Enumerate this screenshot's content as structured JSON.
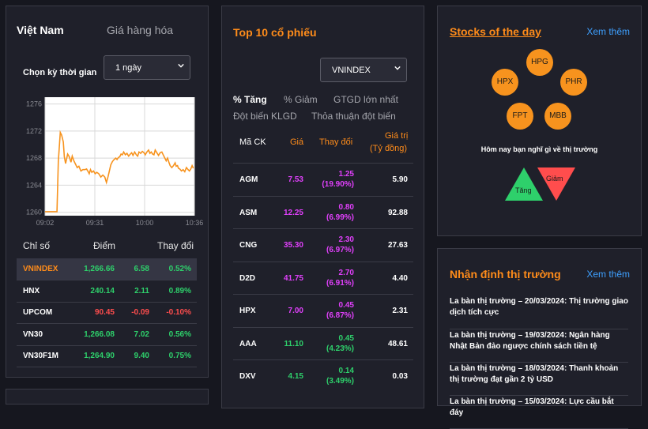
{
  "index_panel": {
    "tabs": [
      "Việt Nam",
      "Giá hàng hóa"
    ],
    "period_label": "Chọn kỳ thời gian",
    "period_value": "1 ngày",
    "chart_data": {
      "type": "line",
      "x_ticks": [
        "09:02",
        "09:31",
        "10:00",
        "10:36"
      ],
      "y_ticks": [
        1276,
        1272,
        1268,
        1264,
        1260
      ],
      "ylim": [
        1259.5,
        1277
      ],
      "x": [
        0,
        7.2,
        8,
        9.2,
        10,
        11,
        11.6,
        12.4,
        13.6,
        14.6,
        15.6,
        16.4,
        17.4,
        18.4,
        19.4,
        20.4,
        21.6,
        22.8,
        24,
        25,
        26,
        26.6,
        27.4,
        28.2,
        29.2,
        30.2,
        31.2,
        32.4,
        33.6,
        34.8,
        36,
        37,
        38,
        39.6,
        40.6,
        41.6,
        42.6,
        43.4,
        44.2,
        45,
        45.8,
        46.6,
        47.4,
        48.4,
        49.4,
        50.4,
        51.4,
        52.2,
        53,
        54,
        55,
        55.8,
        56.6,
        57.6,
        58.6,
        59.6,
        60.4,
        61.4,
        62.4,
        63.2,
        64,
        64.8,
        65.6,
        66.4,
        67.4,
        68.4,
        69.4,
        70.4,
        71.4,
        72.2,
        73,
        73.8,
        74.6,
        75.4,
        76.4,
        77.4,
        78.4,
        79,
        79.8,
        80.4,
        81.2,
        82.2,
        83.2,
        84.2,
        85.2,
        86.2,
        87,
        87.8,
        88.6,
        89.4
      ],
      "y": [
        1260.1,
        1260.1,
        1267.5,
        1271.8,
        1271.4,
        1270.4,
        1268.2,
        1267.2,
        1268.6,
        1268.2,
        1267.4,
        1268.3,
        1267.6,
        1267.1,
        1266.6,
        1266.8,
        1266.1,
        1266.3,
        1266.3,
        1266.4,
        1266.0,
        1265.7,
        1266.3,
        1265.9,
        1266.1,
        1265.7,
        1265.9,
        1265.7,
        1265.2,
        1265.5,
        1265.2,
        1264.4,
        1265.3,
        1267.0,
        1267.5,
        1267.8,
        1268.0,
        1267.8,
        1268.1,
        1268.2,
        1268.6,
        1268.5,
        1268.9,
        1268.5,
        1268.7,
        1268.3,
        1268.6,
        1268.8,
        1268.4,
        1268.9,
        1268.5,
        1268.3,
        1268.9,
        1268.7,
        1269.0,
        1268.8,
        1268.5,
        1268.9,
        1269.2,
        1268.7,
        1268.9,
        1268.6,
        1268.5,
        1269.2,
        1268.8,
        1268.4,
        1268.8,
        1268.9,
        1268.4,
        1268.0,
        1267.6,
        1268.0,
        1267.4,
        1266.9,
        1266.6,
        1266.9,
        1267.3,
        1266.8,
        1266.9,
        1266.5,
        1266.4,
        1266.1,
        1266.3,
        1266.0,
        1266.6,
        1266.3,
        1266.1,
        1266.4,
        1266.9,
        1266.5
      ]
    },
    "table": {
      "headers": [
        "Chỉ số",
        "Điểm",
        "Thay đổi"
      ],
      "rows": [
        {
          "name": "VNINDEX",
          "points": "1,266.66",
          "change": "6.58",
          "pct": "0.52%",
          "dir": "up"
        },
        {
          "name": "HNX",
          "points": "240.14",
          "change": "2.11",
          "pct": "0.89%",
          "dir": "up"
        },
        {
          "name": "UPCOM",
          "points": "90.45",
          "change": "-0.09",
          "pct": "-0.10%",
          "dir": "down"
        },
        {
          "name": "VN30",
          "points": "1,266.08",
          "change": "7.02",
          "pct": "0.56%",
          "dir": "up"
        },
        {
          "name": "VN30F1M",
          "points": "1,264.90",
          "change": "9.40",
          "pct": "0.75%",
          "dir": "up"
        }
      ]
    }
  },
  "top10": {
    "title": "Top 10 cổ phiếu",
    "exchange": "VNINDEX",
    "filters": [
      "% Tăng",
      "% Giảm",
      "GTGD lớn nhất",
      "Đột biến KLGD",
      "Thỏa thuận đột biến"
    ],
    "headers": {
      "code": "Mã CK",
      "price": "Giá",
      "change": "Thay đổi",
      "value_1": "Giá trị",
      "value_2": "(Tỷ đồng)"
    },
    "rows": [
      {
        "code": "AGM",
        "price": "7.53",
        "chg": "1.25",
        "pct": "(19.90%)",
        "value": "5.90",
        "color": "magenta"
      },
      {
        "code": "ASM",
        "price": "12.25",
        "chg": "0.80",
        "pct": "(6.99%)",
        "value": "92.88",
        "color": "magenta"
      },
      {
        "code": "CNG",
        "price": "35.30",
        "chg": "2.30",
        "pct": "(6.97%)",
        "value": "27.63",
        "color": "magenta"
      },
      {
        "code": "D2D",
        "price": "41.75",
        "chg": "2.70",
        "pct": "(6.91%)",
        "value": "4.40",
        "color": "magenta"
      },
      {
        "code": "HPX",
        "price": "7.00",
        "chg": "0.45",
        "pct": "(6.87%)",
        "value": "2.31",
        "color": "magenta"
      },
      {
        "code": "AAA",
        "price": "11.10",
        "chg": "0.45",
        "pct": "(4.23%)",
        "value": "48.61",
        "color": "green"
      },
      {
        "code": "DXV",
        "price": "4.15",
        "chg": "0.14",
        "pct": "(3.49%)",
        "value": "0.03",
        "color": "green"
      }
    ]
  },
  "stocks_of_day": {
    "title": "Stocks of the day",
    "more": "Xem thêm",
    "tickers": [
      "HPG",
      "HPX",
      "PHR",
      "FPT",
      "MBB"
    ],
    "question": "Hôm nay bạn nghĩ gì về thị trường",
    "up_label": "Tăng",
    "down_label": "Giảm",
    "colors": {
      "up": "#2ed06b",
      "down": "#ff4d4d",
      "bubble": "#f7931e"
    }
  },
  "market_view": {
    "title": "Nhận định thị trường",
    "more": "Xem thêm",
    "news": [
      "La bàn thị trường – 20/03/2024: Thị trường giao dịch tích cực",
      "La bàn thị trường – 19/03/2024: Ngân hàng Nhật Bản đảo ngược chính sách tiền tệ",
      "La bàn thị trường – 18/03/2024: Thanh khoản thị trường đạt gần 2 tỷ USD",
      "La bàn thị trường – 15/03/2024: Lực cầu bắt đáy"
    ]
  }
}
